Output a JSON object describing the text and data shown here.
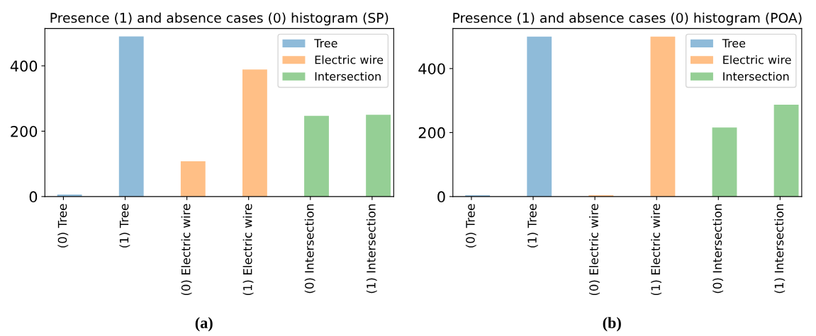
{
  "chart_data": [
    {
      "type": "bar",
      "title": "Presence (1) and absence cases (0) histogram (SP)",
      "categories": [
        "(0) Tree",
        "(1) Tree",
        "(0) Electric wire",
        "(1) Electric wire",
        "(0) Intersection",
        "(1) Intersection"
      ],
      "series": [
        {
          "name": "Tree",
          "color": "#8fbbd9",
          "values": [
            6,
            490,
            null,
            null,
            null,
            null
          ]
        },
        {
          "name": "Electric wire",
          "color": "#ffbf86",
          "values": [
            null,
            null,
            108,
            389,
            null,
            null
          ]
        },
        {
          "name": "Intersection",
          "color": "#95cf95",
          "values": [
            null,
            null,
            null,
            null,
            247,
            250
          ]
        }
      ],
      "ylim": [
        0,
        514
      ],
      "yticks": [
        0,
        200,
        400
      ],
      "legend": "top right",
      "grid": false,
      "annotations": [
        "(a)"
      ]
    },
    {
      "type": "bar",
      "title": "Presence (1) and absence cases (0) histogram (POA)",
      "categories": [
        "(0) Tree",
        "(1) Tree",
        "(0) Electric wire",
        "(1) Electric wire",
        "(0) Intersection",
        "(1) Intersection"
      ],
      "series": [
        {
          "name": "Tree",
          "color": "#8fbbd9",
          "values": [
            4,
            500,
            null,
            null,
            null,
            null
          ]
        },
        {
          "name": "Electric wire",
          "color": "#ffbf86",
          "values": [
            null,
            null,
            4,
            500,
            null,
            null
          ]
        },
        {
          "name": "Intersection",
          "color": "#95cf95",
          "values": [
            null,
            null,
            null,
            null,
            216,
            287
          ]
        }
      ],
      "ylim": [
        0,
        525
      ],
      "yticks": [
        0,
        200,
        400
      ],
      "legend": "top right",
      "grid": false,
      "annotations": [
        "(b)"
      ]
    }
  ]
}
